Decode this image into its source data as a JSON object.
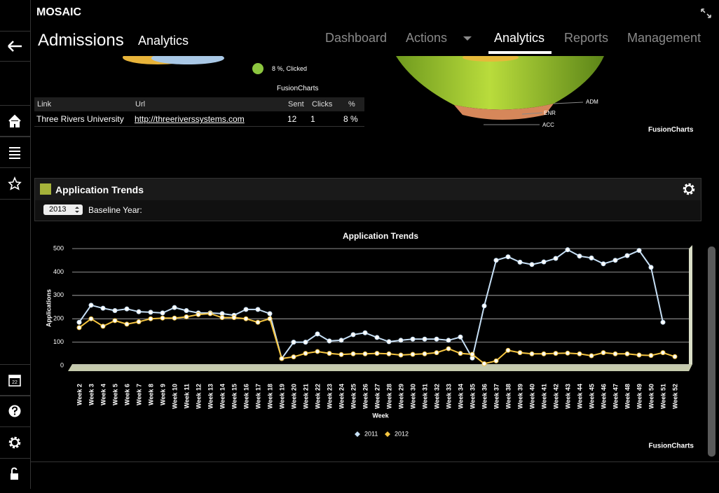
{
  "app": {
    "name": "MOSAIC"
  },
  "header": {
    "title": "Admissions",
    "subtitle": "Analytics"
  },
  "nav": [
    "Dashboard",
    "Actions",
    "Analytics",
    "Reports",
    "Management"
  ],
  "active_nav": 2,
  "sidebar": {
    "calendar_day": "22"
  },
  "top_section": {
    "pie_legend": "8 %, Clicked",
    "pie_credit": "FusionCharts",
    "table": {
      "header": [
        "Link",
        "Url",
        "Sent",
        "Clicks",
        "%"
      ],
      "rows": [
        [
          "Three Rivers University",
          "http://threeriverssystems.com",
          12,
          1,
          "8 %"
        ]
      ]
    },
    "funnel_labels": [
      "ADM",
      "ENR",
      "ACC"
    ],
    "funnel_credit": "FusionCharts"
  },
  "panel": {
    "title": "Application Trends",
    "year_select": "2013",
    "baseline_label": "Baseline Year:"
  },
  "chart_data": {
    "type": "line",
    "title": "Application Trends",
    "x_label": "Week",
    "y_label": "Applications",
    "credit": "FusionCharts",
    "categories": [
      "Week 2",
      "Week 3",
      "Week 4",
      "Week 5",
      "Week 6",
      "Week 7",
      "Week 8",
      "Week 9",
      "Week 10",
      "Week 11",
      "Week 12",
      "Week 13",
      "Week 14",
      "Week 15",
      "Week 16",
      "Week 17",
      "Week 18",
      "Week 19",
      "Week 20",
      "Week 21",
      "Week 22",
      "Week 23",
      "Week 24",
      "Week 25",
      "Week 26",
      "Week 27",
      "Week 28",
      "Week 29",
      "Week 30",
      "Week 31",
      "Week 32",
      "Week 33",
      "Week 34",
      "Week 35",
      "Week 36",
      "Week 37",
      "Week 38",
      "Week 39",
      "Week 40",
      "Week 41",
      "Week 42",
      "Week 43",
      "Week 44",
      "Week 45",
      "Week 46",
      "Week 47",
      "Week 48",
      "Week 49",
      "Week 50",
      "Week 51",
      "Week 52"
    ],
    "series": [
      {
        "name": "2011",
        "color": "#c6dff5",
        "values": [
          185,
          258,
          245,
          235,
          242,
          230,
          228,
          225,
          248,
          235,
          225,
          225,
          222,
          215,
          240,
          240,
          222,
          30,
          100,
          100,
          135,
          105,
          108,
          132,
          140,
          120,
          102,
          108,
          113,
          113,
          113,
          108,
          122,
          32,
          255,
          450,
          465,
          442,
          432,
          443,
          458,
          495,
          468,
          460,
          435,
          450,
          470,
          492,
          420,
          185,
          null
        ]
      },
      {
        "name": "2012",
        "color": "#f5c540",
        "values": [
          162,
          200,
          168,
          192,
          177,
          187,
          200,
          203,
          203,
          208,
          218,
          222,
          205,
          205,
          200,
          185,
          200,
          30,
          37,
          52,
          60,
          52,
          47,
          50,
          50,
          52,
          50,
          45,
          48,
          50,
          55,
          72,
          52,
          48,
          8,
          20,
          65,
          55,
          50,
          50,
          52,
          53,
          50,
          42,
          55,
          50,
          50,
          45,
          43,
          55,
          38
        ]
      }
    ],
    "ylim": [
      0,
      500
    ],
    "yticks": [
      0,
      100,
      200,
      300,
      400,
      500
    ],
    "grid": true,
    "legend": "bottom"
  }
}
